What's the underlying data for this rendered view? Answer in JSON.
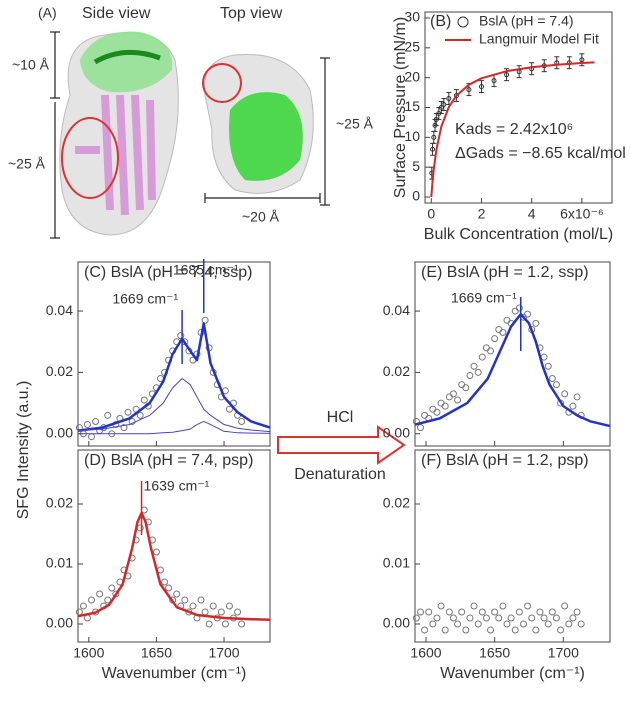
{
  "panel_a": {
    "label": "(A)",
    "side_view": "Side view",
    "top_view": "Top view",
    "dimensions": [
      "~10 Å",
      "~25 Å",
      "~25 Å",
      "~20 Å"
    ]
  },
  "shared_y_label": "SFG Intensity (a.u.)",
  "arrow": {
    "top": "HCl",
    "bottom": "Denaturation"
  },
  "chart_data": [
    {
      "type": "scatter",
      "title": "(B)",
      "x_label": "Bulk Concentration (mol/L)",
      "y_label": "Surface Pressure (mN/m)",
      "xlim": [
        -2.5e-07,
        7.2e-06
      ],
      "ylim": [
        -1,
        31
      ],
      "xticks": [
        0,
        {
          "value": 2e-06,
          "label": "2"
        },
        {
          "value": 4e-06,
          "label": "4"
        },
        {
          "value": 6e-06,
          "label": "6x10⁻⁶"
        }
      ],
      "yticks": [
        0,
        5,
        10,
        15,
        20,
        25,
        30
      ],
      "legend": "upper left",
      "annotations": [
        "Kads = 2.42x10⁶",
        "ΔGads = −8.65 kcal/mol"
      ],
      "series": [
        {
          "name": "BslA (pH = 7.4)",
          "color": "#333333",
          "mode": "markers",
          "x": [
            2e-08,
            5e-08,
            1e-07,
            1.5e-07,
            2e-07,
            3e-07,
            4e-07,
            5e-07,
            7e-07,
            1e-06,
            1.5e-06,
            2e-06,
            2.5e-06,
            3e-06,
            3.5e-06,
            4e-06,
            4.5e-06,
            5e-06,
            5.5e-06,
            6e-06
          ],
          "values": [
            4,
            8,
            10,
            12,
            13,
            14,
            15,
            15.5,
            16.5,
            17,
            18,
            18.5,
            19.5,
            20.5,
            21,
            21.5,
            22,
            22.5,
            22.5,
            23
          ],
          "errors": [
            1,
            1,
            1,
            1,
            1,
            1,
            1,
            1,
            1,
            1,
            1,
            1,
            1,
            1,
            1,
            1,
            1,
            1,
            1,
            1
          ]
        },
        {
          "name": "Langmuir Model Fit",
          "color": "#d62728",
          "mode": "line",
          "x": [
            0,
            5e-08,
            1e-07,
            2e-07,
            4e-07,
            7e-07,
            1e-06,
            1.5e-06,
            2e-06,
            3e-06,
            4e-06,
            5e-06,
            6e-06,
            6.5e-06
          ],
          "values": [
            0,
            2.59,
            4.68,
            7.83,
            11.8,
            15.09,
            16.98,
            18.82,
            19.89,
            21.09,
            21.75,
            22.17,
            22.45,
            22.57
          ]
        }
      ]
    },
    {
      "type": "line",
      "title": "(C) BslA (pH = 7.4, ssp)",
      "xlim": [
        1592,
        1734
      ],
      "ylim": [
        -0.004,
        0.056
      ],
      "xticks": [
        1600,
        1650,
        1700
      ],
      "yticks": [
        {
          "value": 0,
          "label": "0.00"
        },
        {
          "value": 0.02,
          "label": "0.02"
        },
        {
          "value": 0.04,
          "label": "0.04"
        }
      ],
      "peaks": [
        1669,
        1685
      ],
      "peak_labels": [
        "1669 cm⁻¹",
        "1685 cm⁻¹"
      ],
      "series": [
        {
          "color": "#777777",
          "mode": "markers",
          "x": [
            1593,
            1596,
            1599,
            1602,
            1605,
            1608,
            1611,
            1614,
            1617,
            1620,
            1623,
            1626,
            1629,
            1632,
            1635,
            1638,
            1641,
            1644,
            1647,
            1650,
            1653,
            1656,
            1659,
            1662,
            1665,
            1668,
            1671,
            1674,
            1677,
            1680,
            1683,
            1686,
            1689,
            1692,
            1695,
            1698,
            1701,
            1704,
            1707,
            1710,
            1713
          ],
          "values": [
            0.002,
            0.0,
            0.003,
            -0.001,
            0.004,
            0.001,
            0.002,
            0.006,
            0.0,
            0.003,
            0.005,
            0.002,
            0.007,
            0.004,
            0.008,
            0.006,
            0.011,
            0.009,
            0.013,
            0.015,
            0.018,
            0.02,
            0.024,
            0.027,
            0.03,
            0.032,
            0.03,
            0.027,
            0.024,
            0.026,
            0.033,
            0.037,
            0.028,
            0.02,
            0.016,
            0.012,
            0.014,
            0.008,
            0.01,
            0.006,
            0.004
          ]
        },
        {
          "color": "#2233cc",
          "mode": "line",
          "width": 2.5,
          "x": [
            1592,
            1610,
            1630,
            1645,
            1655,
            1662,
            1669,
            1675,
            1680,
            1685,
            1690,
            1700,
            1710,
            1720,
            1734
          ],
          "values": [
            0.001,
            0.002,
            0.005,
            0.01,
            0.017,
            0.026,
            0.031,
            0.027,
            0.024,
            0.036,
            0.023,
            0.012,
            0.007,
            0.004,
            0.002
          ]
        },
        {
          "color": "#4444cc",
          "mode": "line",
          "width": 1,
          "x": [
            1592,
            1610,
            1630,
            1645,
            1655,
            1662,
            1669,
            1675,
            1680,
            1685,
            1690,
            1700,
            1710,
            1720,
            1734
          ],
          "values": [
            0.001,
            0.0015,
            0.003,
            0.006,
            0.01,
            0.015,
            0.018,
            0.016,
            0.012,
            0.008,
            0.006,
            0.003,
            0.0018,
            0.0012,
            0.0007
          ]
        },
        {
          "color": "#4444cc",
          "mode": "line",
          "width": 1,
          "x": [
            1592,
            1610,
            1630,
            1645,
            1655,
            1662,
            1669,
            1675,
            1680,
            1685,
            1690,
            1700,
            1710,
            1720,
            1734
          ],
          "values": [
            0,
            0,
            0,
            0,
            0.0003,
            0.0005,
            0.001,
            0.0015,
            0.003,
            0.004,
            0.003,
            0.0008,
            0.0003,
            0.0002,
            0.0001
          ]
        }
      ]
    },
    {
      "type": "line",
      "title": "(D) BslA (pH = 7.4, psp)",
      "x_label": "Wavenumber (cm⁻¹)",
      "xlim": [
        1592,
        1734
      ],
      "ylim": [
        -0.003,
        0.029
      ],
      "xticks": [
        1600,
        1650,
        1700
      ],
      "yticks": [
        {
          "value": 0,
          "label": "0.00"
        },
        {
          "value": 0.01,
          "label": "0.01"
        },
        {
          "value": 0.02,
          "label": "0.02"
        }
      ],
      "peaks": [
        1639
      ],
      "peak_labels": [
        "1639 cm⁻¹"
      ],
      "series": [
        {
          "color": "#777777",
          "mode": "markers",
          "x": [
            1593,
            1596,
            1599,
            1602,
            1605,
            1608,
            1611,
            1614,
            1617,
            1620,
            1623,
            1626,
            1629,
            1632,
            1635,
            1638,
            1641,
            1644,
            1647,
            1650,
            1653,
            1656,
            1659,
            1662,
            1665,
            1668,
            1671,
            1674,
            1677,
            1680,
            1683,
            1686,
            1689,
            1692,
            1695,
            1698,
            1701,
            1704,
            1707,
            1710,
            1713
          ],
          "values": [
            0.002,
            0.003,
            0.001,
            0.004,
            0.002,
            0.005,
            0.003,
            0.004,
            0.006,
            0.005,
            0.007,
            0.009,
            0.008,
            0.011,
            0.014,
            0.016,
            0.019,
            0.017,
            0.014,
            0.012,
            0.009,
            0.007,
            0.006,
            0.004,
            0.005,
            0.003,
            0.004,
            0.002,
            0.003,
            0.001,
            0.004,
            0.002,
            0.0,
            0.003,
            0.001,
            0.002,
            0.0,
            0.003,
            0.001,
            0.002,
            0.0
          ]
        },
        {
          "color": "#d62728",
          "mode": "line",
          "width": 2.5,
          "x": [
            1592,
            1605,
            1615,
            1625,
            1632,
            1636,
            1639,
            1642,
            1646,
            1653,
            1665,
            1680,
            1700,
            1720,
            1734
          ],
          "values": [
            0.0013,
            0.0019,
            0.0032,
            0.0066,
            0.0126,
            0.017,
            0.0185,
            0.017,
            0.0126,
            0.0066,
            0.0028,
            0.0015,
            0.001,
            0.0008,
            0.0007
          ]
        }
      ]
    },
    {
      "type": "line",
      "title": "(E) BslA (pH = 1.2, ssp)",
      "xlim": [
        1592,
        1734
      ],
      "ylim": [
        -0.004,
        0.056
      ],
      "xticks": [
        1600,
        1650,
        1700
      ],
      "yticks": [
        {
          "value": 0,
          "label": "0.00"
        },
        {
          "value": 0.02,
          "label": "0.02"
        },
        {
          "value": 0.04,
          "label": "0.04"
        }
      ],
      "peaks": [
        1669
      ],
      "peak_labels": [
        "1669 cm⁻¹"
      ],
      "series": [
        {
          "color": "#777777",
          "mode": "markers",
          "x": [
            1593,
            1596,
            1599,
            1602,
            1605,
            1608,
            1611,
            1614,
            1617,
            1620,
            1623,
            1626,
            1629,
            1632,
            1635,
            1638,
            1641,
            1644,
            1647,
            1650,
            1653,
            1656,
            1659,
            1662,
            1665,
            1668,
            1671,
            1674,
            1677,
            1680,
            1683,
            1686,
            1689,
            1692,
            1695,
            1698,
            1701,
            1704,
            1707,
            1710,
            1713
          ],
          "values": [
            0.004,
            0.002,
            0.006,
            0.005,
            0.008,
            0.007,
            0.01,
            0.009,
            0.012,
            0.013,
            0.011,
            0.016,
            0.015,
            0.019,
            0.022,
            0.02,
            0.025,
            0.028,
            0.027,
            0.031,
            0.034,
            0.033,
            0.037,
            0.036,
            0.04,
            0.041,
            0.038,
            0.039,
            0.034,
            0.036,
            0.028,
            0.025,
            0.022,
            0.018,
            0.016,
            0.01,
            0.013,
            0.007,
            0.009,
            0.012,
            0.006
          ]
        },
        {
          "color": "#2233cc",
          "mode": "line",
          "width": 2.5,
          "x": [
            1592,
            1610,
            1630,
            1645,
            1655,
            1662,
            1669,
            1675,
            1680,
            1685,
            1690,
            1700,
            1710,
            1720,
            1734
          ],
          "values": [
            0.003,
            0.005,
            0.01,
            0.018,
            0.028,
            0.035,
            0.039,
            0.036,
            0.03,
            0.022,
            0.016,
            0.009,
            0.006,
            0.004,
            0.0025
          ]
        }
      ]
    },
    {
      "type": "line",
      "title": "(F) BslA (pH = 1.2, psp)",
      "x_label": "Wavenumber (cm⁻¹)",
      "xlim": [
        1592,
        1734
      ],
      "ylim": [
        -0.003,
        0.029
      ],
      "xticks": [
        1600,
        1650,
        1700
      ],
      "yticks": [
        {
          "value": 0,
          "label": "0.00"
        },
        {
          "value": 0.01,
          "label": "0.01"
        },
        {
          "value": 0.02,
          "label": "0.02"
        }
      ],
      "series": [
        {
          "color": "#777777",
          "mode": "markers",
          "x": [
            1593,
            1596,
            1599,
            1602,
            1605,
            1608,
            1611,
            1614,
            1617,
            1620,
            1623,
            1626,
            1629,
            1632,
            1635,
            1638,
            1641,
            1644,
            1647,
            1650,
            1653,
            1656,
            1659,
            1662,
            1665,
            1668,
            1671,
            1674,
            1677,
            1680,
            1683,
            1686,
            1689,
            1692,
            1695,
            1698,
            1701,
            1704,
            1707,
            1710,
            1713
          ],
          "values": [
            0.001,
            0.002,
            -0.001,
            0.002,
            0.0,
            0.001,
            0.003,
            -0.001,
            0.002,
            0.001,
            0.0,
            0.002,
            -0.001,
            0.001,
            0.003,
            0.0,
            0.002,
            0.001,
            -0.001,
            0.002,
            0.001,
            0.003,
            0.0,
            0.001,
            -0.001,
            0.002,
            0.0,
            0.003,
            0.001,
            -0.001,
            0.002,
            0.001,
            0.0,
            0.002,
            0.001,
            -0.001,
            0.003,
            0.0,
            0.001,
            0.002,
            0.0
          ]
        }
      ]
    }
  ]
}
